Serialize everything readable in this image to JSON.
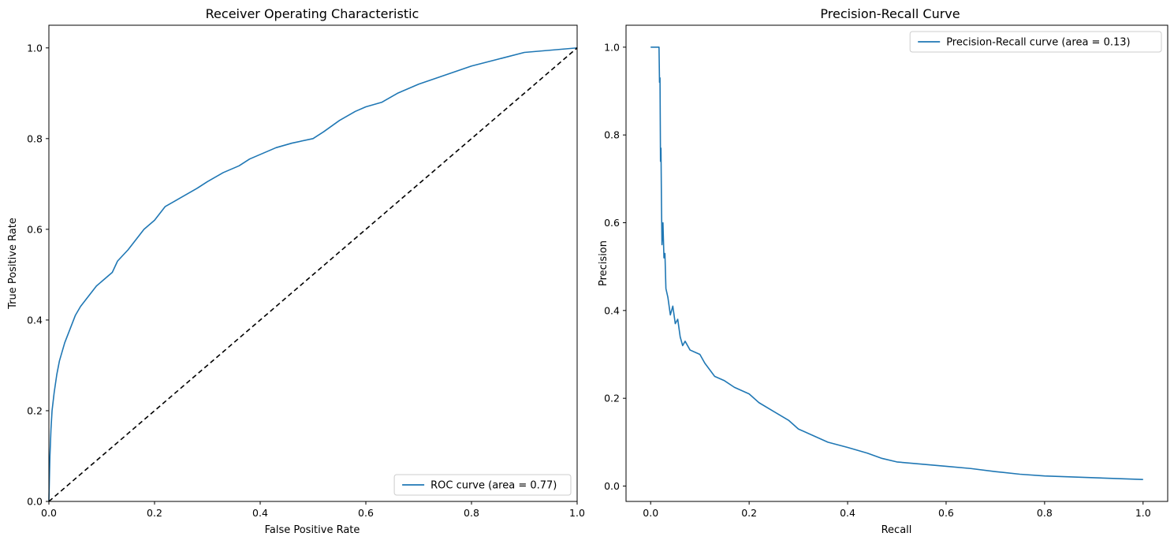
{
  "chart_data": [
    {
      "type": "line",
      "title": "Receiver Operating Characteristic",
      "xlabel": "False Positive Rate",
      "ylabel": "True Positive Rate",
      "xlim": [
        0.0,
        1.0
      ],
      "ylim": [
        0.0,
        1.05
      ],
      "xticks": [
        "0.0",
        "0.2",
        "0.4",
        "0.6",
        "0.8",
        "1.0"
      ],
      "yticks": [
        "0.0",
        "0.2",
        "0.4",
        "0.6",
        "0.8",
        "1.0"
      ],
      "xtick_values": [
        0.0,
        0.2,
        0.4,
        0.6,
        0.8,
        1.0
      ],
      "ytick_values": [
        0.0,
        0.2,
        0.4,
        0.6,
        0.8,
        1.0
      ],
      "grid": false,
      "legend_position": "lower-right",
      "series": [
        {
          "name": "ROC curve (area = 0.77)",
          "color": "#1f77b4",
          "style": "solid",
          "x": [
            0.0,
            0.002,
            0.004,
            0.006,
            0.01,
            0.015,
            0.02,
            0.025,
            0.03,
            0.04,
            0.05,
            0.06,
            0.07,
            0.08,
            0.09,
            0.1,
            0.12,
            0.13,
            0.15,
            0.17,
            0.18,
            0.2,
            0.22,
            0.25,
            0.28,
            0.3,
            0.33,
            0.36,
            0.38,
            0.4,
            0.43,
            0.46,
            0.5,
            0.52,
            0.55,
            0.58,
            0.6,
            0.63,
            0.66,
            0.7,
            0.75,
            0.8,
            0.85,
            0.9,
            0.95,
            1.0
          ],
          "y": [
            0.0,
            0.1,
            0.16,
            0.2,
            0.24,
            0.28,
            0.31,
            0.33,
            0.35,
            0.38,
            0.41,
            0.43,
            0.445,
            0.46,
            0.475,
            0.485,
            0.505,
            0.53,
            0.555,
            0.585,
            0.6,
            0.62,
            0.65,
            0.67,
            0.69,
            0.705,
            0.725,
            0.74,
            0.755,
            0.765,
            0.78,
            0.79,
            0.8,
            0.815,
            0.84,
            0.86,
            0.87,
            0.88,
            0.9,
            0.92,
            0.94,
            0.96,
            0.975,
            0.99,
            0.995,
            1.0
          ]
        },
        {
          "name": "",
          "color": "#000000",
          "style": "dashed",
          "x": [
            0.0,
            1.0
          ],
          "y": [
            0.0,
            1.0
          ]
        }
      ]
    },
    {
      "type": "line",
      "title": "Precision-Recall Curve",
      "xlabel": "Recall",
      "ylabel": "Precision",
      "xlim": [
        -0.05,
        1.05
      ],
      "ylim": [
        -0.035,
        1.05
      ],
      "xticks": [
        "0.0",
        "0.2",
        "0.4",
        "0.6",
        "0.8",
        "1.0"
      ],
      "yticks": [
        "0.0",
        "0.2",
        "0.4",
        "0.6",
        "0.8",
        "1.0"
      ],
      "xtick_values": [
        0.0,
        0.2,
        0.4,
        0.6,
        0.8,
        1.0
      ],
      "ytick_values": [
        0.0,
        0.2,
        0.4,
        0.6,
        0.8,
        1.0
      ],
      "grid": false,
      "legend_position": "upper-right",
      "series": [
        {
          "name": "Precision-Recall curve (area = 0.13)",
          "color": "#1f77b4",
          "style": "solid",
          "x": [
            0.0,
            0.008,
            0.017,
            0.018,
            0.019,
            0.02,
            0.021,
            0.022,
            0.023,
            0.025,
            0.027,
            0.029,
            0.031,
            0.035,
            0.04,
            0.045,
            0.05,
            0.055,
            0.06,
            0.065,
            0.07,
            0.08,
            0.09,
            0.1,
            0.11,
            0.12,
            0.13,
            0.14,
            0.15,
            0.17,
            0.2,
            0.22,
            0.25,
            0.28,
            0.3,
            0.33,
            0.36,
            0.4,
            0.44,
            0.47,
            0.5,
            0.55,
            0.6,
            0.65,
            0.7,
            0.75,
            0.8,
            0.9,
            1.0
          ],
          "y": [
            1.0,
            1.0,
            1.0,
            0.92,
            0.93,
            0.74,
            0.77,
            0.64,
            0.55,
            0.6,
            0.52,
            0.53,
            0.45,
            0.43,
            0.39,
            0.41,
            0.37,
            0.38,
            0.34,
            0.32,
            0.33,
            0.31,
            0.305,
            0.3,
            0.28,
            0.265,
            0.25,
            0.245,
            0.24,
            0.225,
            0.21,
            0.19,
            0.17,
            0.15,
            0.13,
            0.115,
            0.1,
            0.088,
            0.075,
            0.063,
            0.055,
            0.05,
            0.045,
            0.04,
            0.033,
            0.027,
            0.023,
            0.019,
            0.015
          ]
        }
      ]
    }
  ]
}
